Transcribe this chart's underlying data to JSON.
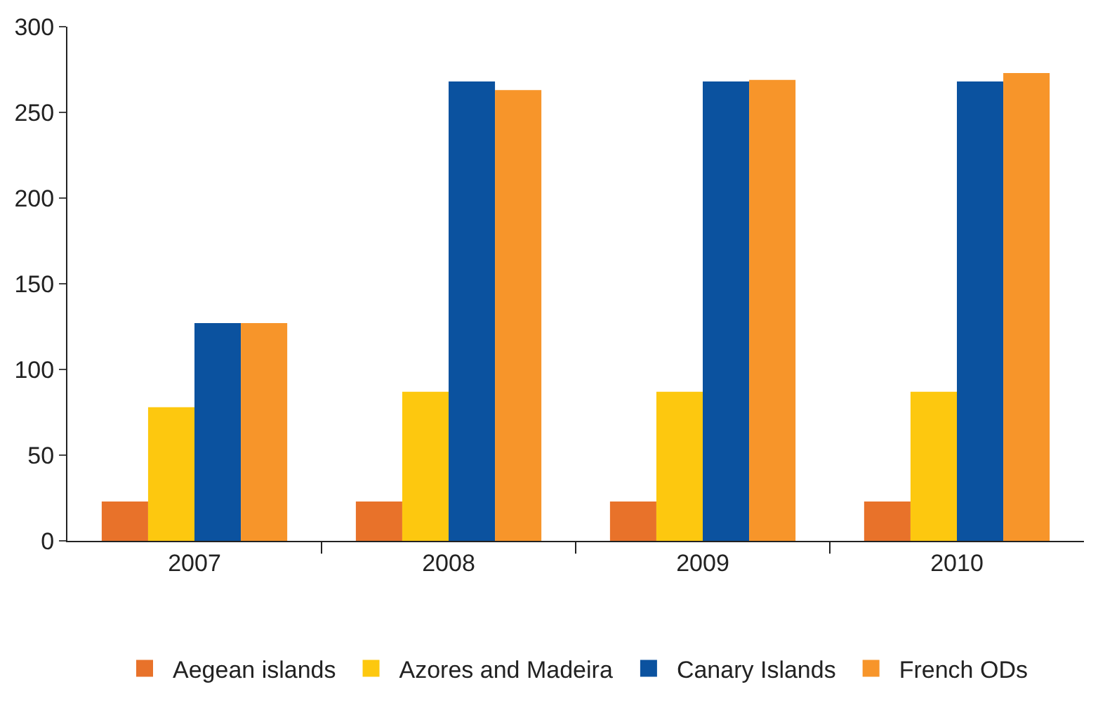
{
  "chart_data": {
    "type": "bar",
    "categories": [
      "2007",
      "2008",
      "2009",
      "2010"
    ],
    "series": [
      {
        "name": "Aegean islands",
        "color": "#e8722a",
        "values": [
          23,
          23,
          23,
          23
        ]
      },
      {
        "name": "Azores and Madeira",
        "color": "#fdc80f",
        "values": [
          78,
          87,
          87,
          87
        ]
      },
      {
        "name": "Canary Islands",
        "color": "#0b529f",
        "values": [
          127,
          268,
          268,
          268
        ]
      },
      {
        "name": "French ODs",
        "color": "#f7952a",
        "values": [
          127,
          263,
          269,
          273
        ]
      }
    ],
    "ylim": [
      0,
      300
    ],
    "yticks": [
      0,
      50,
      100,
      150,
      200,
      250,
      300
    ],
    "legend": "bottom"
  }
}
